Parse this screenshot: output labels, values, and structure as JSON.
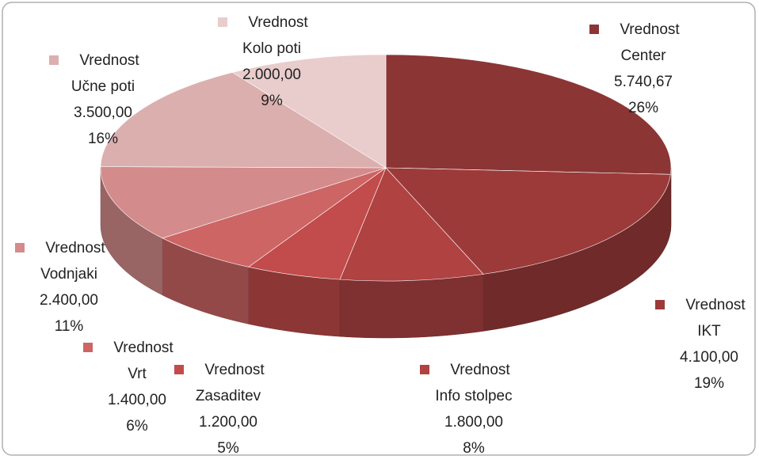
{
  "chart_data": {
    "type": "pie3d",
    "series_name": "Vrednost",
    "categories": [
      "Center",
      "IKT",
      "Info stolpec",
      "Zasaditev",
      "Vrt",
      "Vodnjaki",
      "Učne poti",
      "Kolo poti"
    ],
    "values": [
      5740.67,
      4100,
      1800,
      1200,
      1400,
      2400,
      3500,
      2000
    ],
    "value_labels": [
      "5.740,67",
      "4.100,00",
      "1.800,00",
      "1.200,00",
      "1.400,00",
      "2.400,00",
      "3.500,00",
      "2.000,00"
    ],
    "percent_labels": [
      "26%",
      "19%",
      "8%",
      "5%",
      "6%",
      "11%",
      "16%",
      "9%"
    ],
    "colors": [
      "#8c3535",
      "#9c3a3a",
      "#b04242",
      "#c24b4b",
      "#cd6565",
      "#d48b8b",
      "#dcafaf",
      "#e9cccc"
    ]
  }
}
